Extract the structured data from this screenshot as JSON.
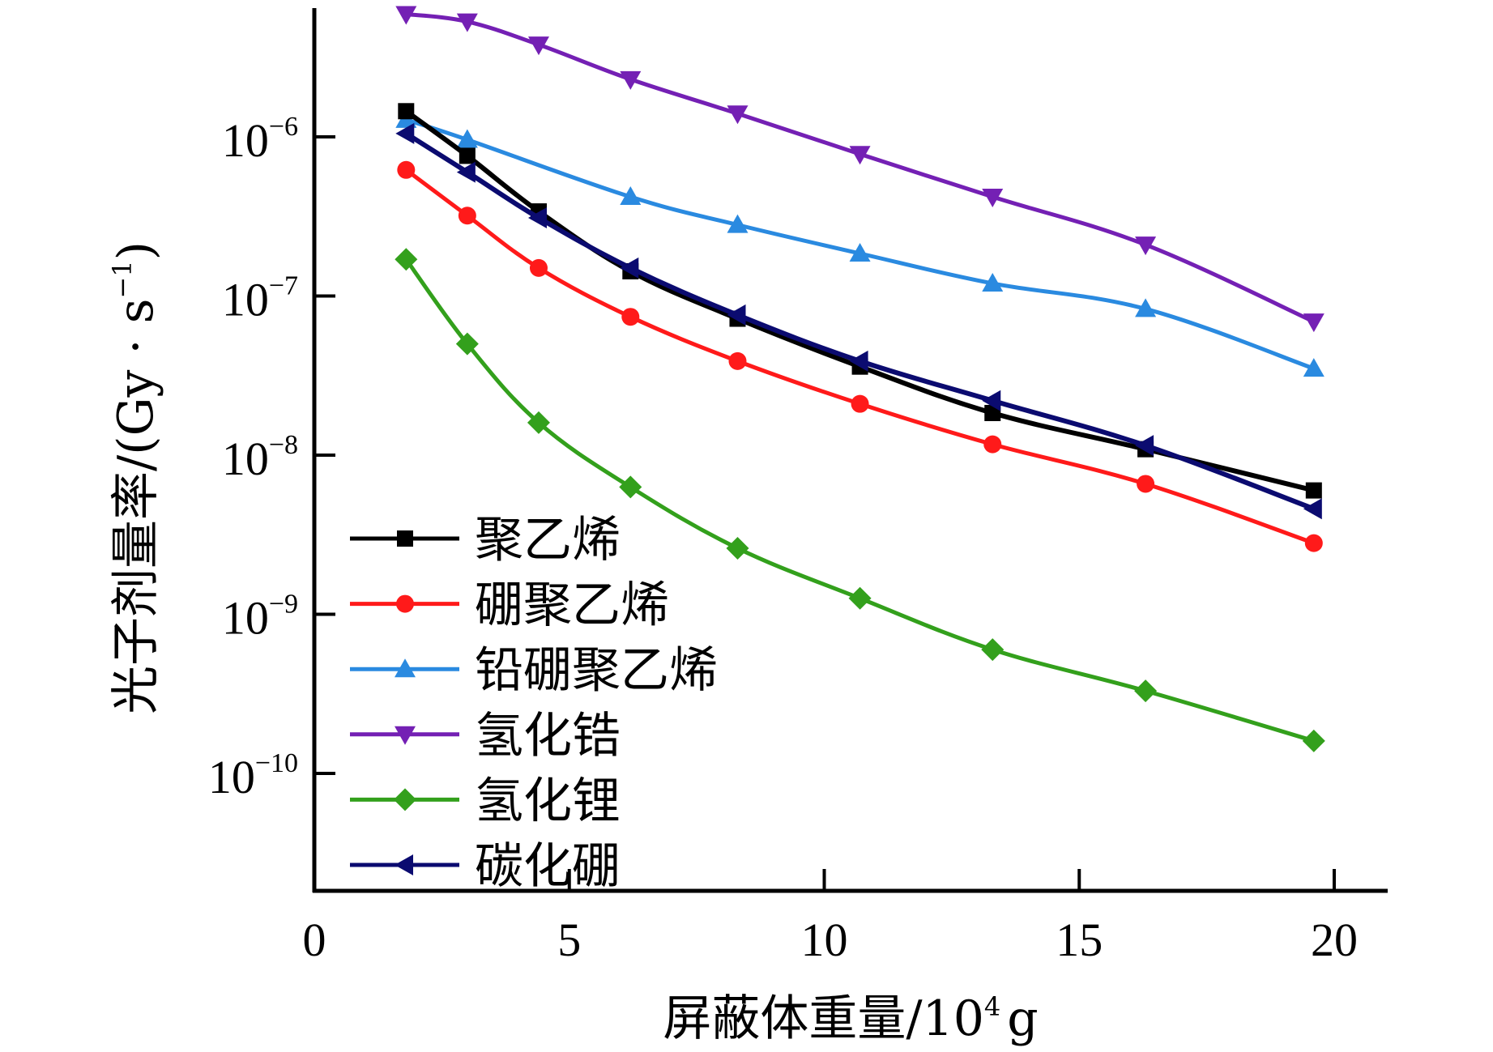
{
  "chart_data": {
    "type": "line",
    "title": "",
    "xlabel": "屏蔽体重量/10⁴ g",
    "xlabel_main": "屏蔽体重量/10",
    "xlabel_exp": "4",
    "xlabel_unit": "g",
    "ylabel": "光子剂量率/(Gy · s⁻¹)",
    "ylabel_main": "光子剂量率/(Gy · s",
    "ylabel_exp": "−1",
    "ylabel_close": ")",
    "xlim": [
      0,
      21
    ],
    "ylim": [
      6.2e-11,
      6.5e-06
    ],
    "yscale": "log",
    "grid": false,
    "legend_position": "bottom-left",
    "x_ticks": [
      {
        "value": 0,
        "label": "0"
      },
      {
        "value": 5,
        "label": "5"
      },
      {
        "value": 10,
        "label": "10"
      },
      {
        "value": 15,
        "label": "15"
      },
      {
        "value": 20,
        "label": "20"
      }
    ],
    "y_ticks": [
      {
        "value": 1e-06,
        "base": "10",
        "exp": "−6"
      },
      {
        "value": 1e-07,
        "base": "10",
        "exp": "−7"
      },
      {
        "value": 1e-08,
        "base": "10",
        "exp": "−8"
      },
      {
        "value": 1e-09,
        "base": "10",
        "exp": "−9"
      },
      {
        "value": 1e-10,
        "base": "10",
        "exp": "−10"
      }
    ],
    "series": [
      {
        "name": "聚乙烯",
        "color": "#000000",
        "marker": "square",
        "x": [
          1.8,
          3.0,
          4.4,
          6.2,
          8.3,
          10.7,
          13.3,
          16.3,
          19.6
        ],
        "y": [
          1.45e-06,
          7.6e-07,
          3.4e-07,
          1.43e-07,
          7.2e-08,
          3.6e-08,
          1.84e-08,
          1.09e-08,
          6e-09
        ]
      },
      {
        "name": "硼聚乙烯",
        "color": "#ff1a1a",
        "marker": "circle",
        "x": [
          1.8,
          3.0,
          4.4,
          6.2,
          8.3,
          10.7,
          13.3,
          16.3,
          19.6
        ],
        "y": [
          6.2e-07,
          3.2e-07,
          1.5e-07,
          7.4e-08,
          3.9e-08,
          2.1e-08,
          1.17e-08,
          6.6e-09,
          2.8e-09
        ]
      },
      {
        "name": "铅硼聚乙烯",
        "color": "#2a8ae0",
        "marker": "triangle-up",
        "x": [
          1.8,
          3.0,
          6.2,
          8.3,
          10.7,
          13.3,
          16.3,
          19.6
        ],
        "y": [
          1.28e-06,
          9.6e-07,
          4.2e-07,
          2.8e-07,
          1.85e-07,
          1.2e-07,
          8.3e-08,
          3.5e-08
        ]
      },
      {
        "name": "氢化锆",
        "color": "#7420b4",
        "marker": "triangle-down",
        "x": [
          1.8,
          3.0,
          4.4,
          6.2,
          8.3,
          10.7,
          13.3,
          16.3,
          19.6
        ],
        "y": [
          5.9e-06,
          5.3e-06,
          3.8e-06,
          2.3e-06,
          1.4e-06,
          7.8e-07,
          4.2e-07,
          2.1e-07,
          6.9e-08
        ]
      },
      {
        "name": "氢化锂",
        "color": "#33a01c",
        "marker": "diamond",
        "x": [
          1.8,
          3.0,
          4.4,
          6.2,
          8.3,
          10.7,
          13.3,
          16.3,
          19.6
        ],
        "y": [
          1.7e-07,
          5e-08,
          1.6e-08,
          6.3e-09,
          2.6e-09,
          1.26e-09,
          6e-10,
          3.3e-10,
          1.6e-10
        ]
      },
      {
        "name": "碳化硼",
        "color": "#0b0b70",
        "marker": "triangle-left",
        "x": [
          1.8,
          3.0,
          4.4,
          6.2,
          8.3,
          10.7,
          13.3,
          16.3,
          19.6
        ],
        "y": [
          1.05e-06,
          6e-07,
          3.1e-07,
          1.5e-07,
          7.6e-08,
          3.9e-08,
          2.2e-08,
          1.15e-08,
          4.6e-09
        ]
      }
    ]
  }
}
